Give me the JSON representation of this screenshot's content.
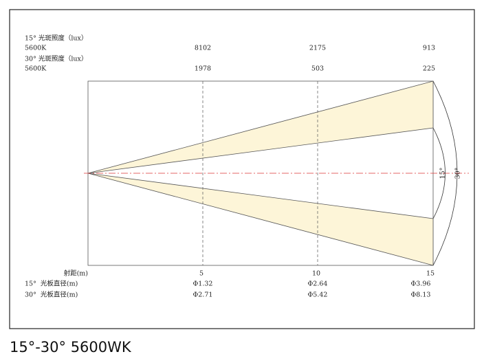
{
  "illuminance": [
    {
      "label": "15° 光斑照度（lux）",
      "unit": "5600K",
      "values": [
        "8102",
        "2175",
        "913"
      ]
    },
    {
      "label": "30° 光斑照度（lux）",
      "unit": "5600K",
      "values": [
        "1978",
        "503",
        "225"
      ]
    }
  ],
  "distance": {
    "label": "射距(m)",
    "values": [
      "5",
      "10",
      "15"
    ]
  },
  "diameters": [
    {
      "label": "15°  光板直径(m)",
      "values": [
        "Φ1.32",
        "Φ2.64",
        "Φ3.96"
      ]
    },
    {
      "label": "30°  光板直径(m)",
      "values": [
        "Φ2.71",
        "Φ5.42",
        "Φ8.13"
      ]
    }
  ],
  "angles": [
    "15°",
    "30°"
  ],
  "caption": "15°-30° 5600WK"
}
